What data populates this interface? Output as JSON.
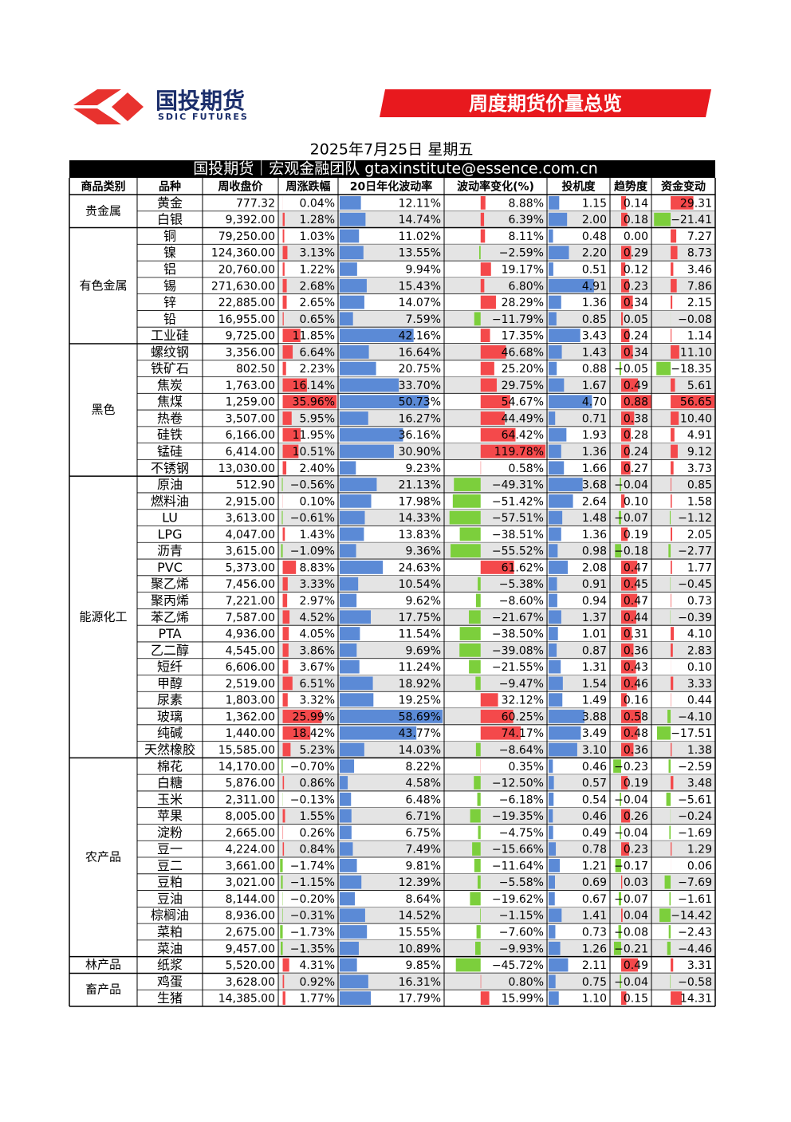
{
  "header": {
    "logo": "国投期货",
    "logo_sub": "SDIC FUTURES",
    "tag": "周度期货价量总览"
  },
  "date": "2025年7月25日 星期五",
  "banner": "国投期货｜宏观金融团队 gtaxinstitute@essence.com.cn",
  "table": {
    "columns": [
      "商品类别",
      "品种",
      "周收盘价",
      "周涨跌幅",
      "20日年化波动率",
      "波动率变化(%)",
      "投机度",
      "趋势度",
      "资金变动"
    ],
    "groups": [
      {
        "category": "贵金属",
        "rows": [
          [
            "黄金",
            "777.32",
            "0.04%",
            "12.11%",
            "8.88%",
            "1.15",
            "0.14",
            "29.31"
          ],
          [
            "白银",
            "9,392.00",
            "1.28%",
            "14.74%",
            "6.39%",
            "2.00",
            "0.18",
            "−21.41"
          ]
        ]
      },
      {
        "category": "有色金属",
        "rows": [
          [
            "铜",
            "79,250.00",
            "1.03%",
            "11.02%",
            "8.11%",
            "0.48",
            "0.00",
            "7.27"
          ],
          [
            "镍",
            "124,360.00",
            "3.13%",
            "13.55%",
            "−2.59%",
            "2.20",
            "0.29",
            "8.73"
          ],
          [
            "铝",
            "20,760.00",
            "1.22%",
            "9.94%",
            "19.17%",
            "0.51",
            "0.12",
            "3.46"
          ],
          [
            "锡",
            "271,630.00",
            "2.68%",
            "15.43%",
            "6.80%",
            "4.91",
            "0.23",
            "7.86"
          ],
          [
            "锌",
            "22,885.00",
            "2.65%",
            "14.07%",
            "28.29%",
            "1.36",
            "0.34",
            "2.15"
          ],
          [
            "铅",
            "16,955.00",
            "0.65%",
            "7.59%",
            "−11.79%",
            "0.85",
            "0.05",
            "−0.08"
          ],
          [
            "工业硅",
            "9,725.00",
            "11.85%",
            "42.16%",
            "17.35%",
            "3.43",
            "0.24",
            "1.14"
          ]
        ]
      },
      {
        "category": "黑色",
        "rows": [
          [
            "螺纹钢",
            "3,356.00",
            "6.64%",
            "16.64%",
            "46.68%",
            "1.43",
            "0.34",
            "11.10"
          ],
          [
            "铁矿石",
            "802.50",
            "2.23%",
            "20.75%",
            "25.20%",
            "0.88",
            "−0.05",
            "−18.35"
          ],
          [
            "焦炭",
            "1,763.00",
            "16.14%",
            "33.70%",
            "29.75%",
            "1.67",
            "0.49",
            "5.61"
          ],
          [
            "焦煤",
            "1,259.00",
            "35.96%",
            "50.73%",
            "54.67%",
            "4.70",
            "0.88",
            "56.65"
          ],
          [
            "热卷",
            "3,507.00",
            "5.95%",
            "16.27%",
            "44.49%",
            "0.71",
            "0.38",
            "10.40"
          ],
          [
            "硅铁",
            "6,166.00",
            "11.95%",
            "36.16%",
            "64.42%",
            "1.93",
            "0.28",
            "4.91"
          ],
          [
            "锰硅",
            "6,414.00",
            "10.51%",
            "30.90%",
            "119.78%",
            "1.36",
            "0.24",
            "9.12"
          ],
          [
            "不锈钢",
            "13,030.00",
            "2.40%",
            "9.23%",
            "0.58%",
            "1.66",
            "0.27",
            "3.73"
          ]
        ]
      },
      {
        "category": "能源化工",
        "rows": [
          [
            "原油",
            "512.90",
            "−0.56%",
            "21.13%",
            "−49.31%",
            "3.68",
            "−0.04",
            "0.85"
          ],
          [
            "燃料油",
            "2,915.00",
            "0.10%",
            "17.98%",
            "−51.42%",
            "2.64",
            "0.10",
            "1.58"
          ],
          [
            "LU",
            "3,613.00",
            "−0.61%",
            "14.33%",
            "−57.51%",
            "1.48",
            "−0.07",
            "−1.12"
          ],
          [
            "LPG",
            "4,047.00",
            "1.43%",
            "13.83%",
            "−38.51%",
            "1.36",
            "0.19",
            "2.05"
          ],
          [
            "沥青",
            "3,615.00",
            "−1.09%",
            "9.36%",
            "−55.52%",
            "0.98",
            "−0.18",
            "−2.77"
          ],
          [
            "PVC",
            "5,373.00",
            "8.83%",
            "24.63%",
            "61.62%",
            "2.08",
            "0.47",
            "1.77"
          ],
          [
            "聚乙烯",
            "7,456.00",
            "3.33%",
            "10.54%",
            "−5.38%",
            "0.91",
            "0.45",
            "−0.45"
          ],
          [
            "聚丙烯",
            "7,221.00",
            "2.97%",
            "9.62%",
            "−8.60%",
            "0.94",
            "0.47",
            "0.73"
          ],
          [
            "苯乙烯",
            "7,587.00",
            "4.52%",
            "17.75%",
            "−21.67%",
            "1.37",
            "0.44",
            "−0.39"
          ],
          [
            "PTA",
            "4,936.00",
            "4.05%",
            "11.54%",
            "−38.50%",
            "1.01",
            "0.31",
            "4.10"
          ],
          [
            "乙二醇",
            "4,545.00",
            "3.86%",
            "9.69%",
            "−39.08%",
            "0.87",
            "0.36",
            "2.83"
          ],
          [
            "短纤",
            "6,606.00",
            "3.67%",
            "11.24%",
            "−21.55%",
            "1.31",
            "0.43",
            "0.10"
          ],
          [
            "甲醇",
            "2,519.00",
            "6.51%",
            "18.92%",
            "−9.47%",
            "1.54",
            "0.46",
            "3.33"
          ],
          [
            "尿素",
            "1,803.00",
            "3.32%",
            "19.25%",
            "32.12%",
            "1.49",
            "0.16",
            "0.44"
          ],
          [
            "玻璃",
            "1,362.00",
            "25.99%",
            "58.69%",
            "60.25%",
            "3.88",
            "0.58",
            "−4.10"
          ],
          [
            "纯碱",
            "1,440.00",
            "18.42%",
            "43.77%",
            "74.17%",
            "3.49",
            "0.48",
            "−17.51"
          ],
          [
            "天然橡胶",
            "15,585.00",
            "5.23%",
            "14.03%",
            "−8.64%",
            "3.10",
            "0.36",
            "1.38"
          ]
        ]
      },
      {
        "category": "农产品",
        "rows": [
          [
            "棉花",
            "14,170.00",
            "−0.70%",
            "8.22%",
            "0.35%",
            "0.46",
            "−0.23",
            "−2.59"
          ],
          [
            "白糖",
            "5,876.00",
            "0.86%",
            "4.58%",
            "−12.50%",
            "0.57",
            "0.19",
            "3.48"
          ],
          [
            "玉米",
            "2,311.00",
            "−0.13%",
            "6.48%",
            "−6.18%",
            "0.54",
            "−0.04",
            "−5.61"
          ],
          [
            "苹果",
            "8,005.00",
            "1.55%",
            "6.71%",
            "−19.35%",
            "0.46",
            "0.26",
            "−0.24"
          ],
          [
            "淀粉",
            "2,665.00",
            "0.26%",
            "6.75%",
            "−4.75%",
            "0.49",
            "−0.04",
            "−1.69"
          ],
          [
            "豆一",
            "4,224.00",
            "0.84%",
            "7.49%",
            "−15.66%",
            "0.78",
            "0.23",
            "1.29"
          ],
          [
            "豆二",
            "3,661.00",
            "−1.74%",
            "9.81%",
            "−11.64%",
            "1.21",
            "−0.17",
            "0.06"
          ],
          [
            "豆粕",
            "3,021.00",
            "−1.15%",
            "12.39%",
            "−5.58%",
            "0.69",
            "0.03",
            "−7.69"
          ],
          [
            "豆油",
            "8,144.00",
            "−0.20%",
            "8.64%",
            "−19.62%",
            "0.67",
            "−0.07",
            "−1.61"
          ],
          [
            "棕榈油",
            "8,936.00",
            "−0.31%",
            "14.52%",
            "−1.15%",
            "1.41",
            "0.04",
            "−14.42"
          ],
          [
            "菜粕",
            "2,675.00",
            "−1.73%",
            "15.55%",
            "−7.60%",
            "0.73",
            "−0.08",
            "−2.43"
          ],
          [
            "菜油",
            "9,457.00",
            "−1.35%",
            "10.89%",
            "−9.93%",
            "1.26",
            "−0.21",
            "−4.46"
          ]
        ]
      },
      {
        "category": "林产品",
        "rows": [
          [
            "纸浆",
            "5,520.00",
            "4.31%",
            "9.85%",
            "−45.72%",
            "2.11",
            "0.49",
            "3.31"
          ]
        ]
      },
      {
        "category": "畜产品",
        "rows": [
          [
            "鸡蛋",
            "3,628.00",
            "0.92%",
            "16.31%",
            "0.80%",
            "0.75",
            "−0.04",
            "−0.58"
          ],
          [
            "生猪",
            "14,385.00",
            "1.77%",
            "17.79%",
            "15.99%",
            "1.10",
            "0.15",
            "14.31"
          ]
        ]
      }
    ]
  }
}
